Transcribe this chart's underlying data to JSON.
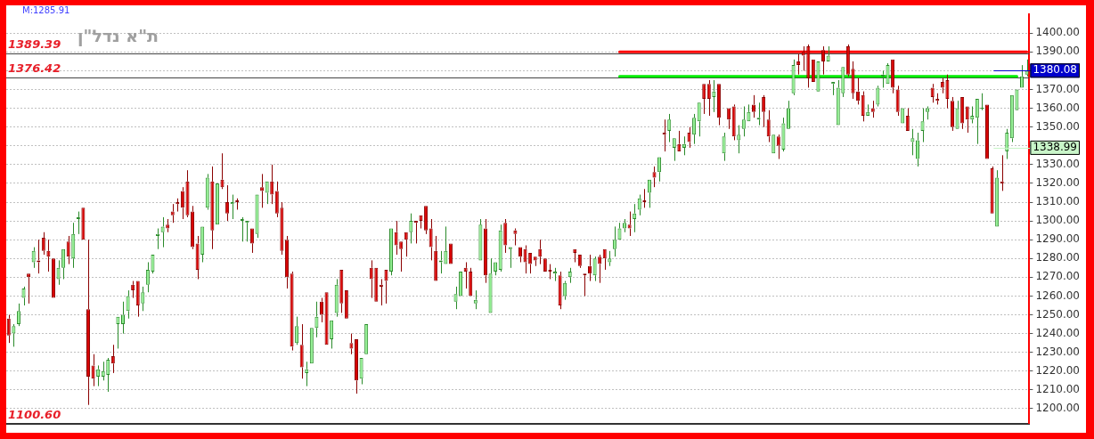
{
  "chart_data": {
    "type": "candlestick",
    "title": "ת\"א נדל\"ן",
    "categories": [
      null,
      null,
      null,
      null,
      null,
      null,
      null,
      null,
      null,
      null,
      null,
      null,
      null,
      null,
      null,
      null,
      null,
      null,
      null,
      null,
      null,
      null,
      null,
      null,
      null,
      null,
      null,
      null,
      null,
      null,
      null,
      null,
      null,
      null,
      null,
      null,
      null,
      null,
      null,
      null,
      null,
      null,
      null,
      null,
      null,
      null,
      null,
      null,
      null,
      null,
      null,
      null,
      null,
      null,
      null,
      null,
      null,
      null,
      null,
      null,
      null,
      null,
      null,
      null,
      null,
      null,
      null,
      null,
      null,
      null,
      null,
      null,
      null,
      null,
      null,
      null,
      null,
      null,
      null,
      null,
      null,
      null,
      null,
      null,
      null,
      null,
      null,
      null,
      null,
      null,
      null,
      null,
      null,
      null,
      null,
      null,
      null,
      null,
      null,
      null,
      null,
      null,
      null,
      null,
      null,
      null,
      null,
      null,
      null,
      null,
      null,
      null,
      null,
      null,
      null,
      null,
      null,
      null,
      null,
      null,
      null,
      null,
      null,
      null,
      null,
      null,
      null,
      null,
      null,
      null,
      null,
      null,
      null,
      null,
      null,
      null,
      null,
      null,
      null,
      null,
      null,
      null,
      null,
      null,
      null,
      null,
      null,
      null,
      null,
      null,
      null,
      null,
      null,
      null,
      null,
      null,
      null,
      null,
      null,
      null,
      null,
      null,
      null,
      null,
      null,
      null,
      null,
      null,
      null,
      null,
      null,
      null,
      null,
      null,
      null,
      null,
      null,
      null,
      null,
      null,
      null,
      null,
      null,
      null,
      null,
      null,
      null,
      null,
      null,
      null,
      null,
      null,
      null,
      null,
      null,
      null,
      null,
      null,
      null,
      null,
      null,
      null,
      null,
      null,
      null,
      null
    ],
    "ohlc": [
      [
        1248,
        1250,
        1235,
        1239
      ],
      [
        1240,
        1245,
        1233,
        1244
      ],
      [
        1245,
        1256,
        1244,
        1252
      ],
      [
        1259,
        1265,
        1255,
        1264
      ],
      [
        1272,
        1272,
        1256,
        1270
      ],
      [
        1278,
        1286,
        1275,
        1284
      ],
      [
        1279,
        1290,
        1272,
        1278
      ],
      [
        1291,
        1294,
        1282,
        1284
      ],
      [
        1284,
        1290,
        1273,
        1281
      ],
      [
        1280,
        1280,
        1259,
        1259
      ],
      [
        1269,
        1279,
        1266,
        1275
      ],
      [
        1275,
        1285,
        1269,
        1285
      ],
      [
        1289,
        1292,
        1277,
        1281
      ],
      [
        1280,
        1299,
        1275,
        1293
      ],
      [
        1301,
        1305,
        1293,
        1302
      ],
      [
        1307,
        1307,
        1290,
        1290
      ],
      [
        1253,
        1290,
        1202,
        1217
      ],
      [
        1223,
        1229,
        1212,
        1216
      ],
      [
        1217,
        1223,
        1212,
        1221
      ],
      [
        1217,
        1225,
        1215,
        1220
      ],
      [
        1218,
        1227,
        1209,
        1226
      ],
      [
        1228,
        1234,
        1219,
        1224
      ],
      [
        1245,
        1249,
        1232,
        1249
      ],
      [
        1245,
        1257,
        1240,
        1250
      ],
      [
        1252,
        1263,
        1248,
        1260
      ],
      [
        1266,
        1268,
        1259,
        1263
      ],
      [
        1268,
        1268,
        1249,
        1255
      ],
      [
        1256,
        1265,
        1252,
        1262
      ],
      [
        1266,
        1278,
        1262,
        1274
      ],
      [
        1273,
        1282,
        1272,
        1282
      ],
      [
        1292,
        1296,
        1285,
        1293
      ],
      [
        1294,
        1302,
        1286,
        1297
      ],
      [
        1298,
        1301,
        1294,
        1296
      ],
      [
        1305,
        1309,
        1299,
        1303
      ],
      [
        1310,
        1312,
        1305,
        1309
      ],
      [
        1316,
        1318,
        1301,
        1307
      ],
      [
        1321,
        1327,
        1302,
        1303
      ],
      [
        1305,
        1308,
        1285,
        1286
      ],
      [
        1288,
        1292,
        1269,
        1274
      ],
      [
        1282,
        1297,
        1278,
        1297
      ],
      [
        1307,
        1325,
        1306,
        1323
      ],
      [
        1321,
        1329,
        1285,
        1295
      ],
      [
        1298,
        1320,
        1298,
        1320
      ],
      [
        1322,
        1336,
        1317,
        1318
      ],
      [
        1310,
        1319,
        1300,
        1304
      ],
      [
        1309,
        1314,
        1301,
        1310
      ],
      [
        1311,
        1312,
        1306,
        1310
      ],
      [
        1300,
        1302,
        1289,
        1301
      ],
      [
        1299,
        1300,
        1289,
        1300
      ],
      [
        1296,
        1296,
        1283,
        1288
      ],
      [
        1293,
        1314,
        1291,
        1314
      ],
      [
        1318,
        1325,
        1307,
        1316
      ],
      [
        1315,
        1321,
        1309,
        1321
      ],
      [
        1321,
        1330,
        1309,
        1314
      ],
      [
        1316,
        1321,
        1302,
        1304
      ],
      [
        1307,
        1310,
        1282,
        1284
      ],
      [
        1290,
        1292,
        1264,
        1270
      ],
      [
        1272,
        1273,
        1231,
        1233
      ],
      [
        1235,
        1249,
        1234,
        1244
      ],
      [
        1234,
        1245,
        1216,
        1222
      ],
      [
        1219,
        1225,
        1212,
        1221
      ],
      [
        1224,
        1243,
        1224,
        1243
      ],
      [
        1243,
        1257,
        1238,
        1249
      ],
      [
        1257,
        1259,
        1246,
        1250
      ],
      [
        1262,
        1262,
        1234,
        1234
      ],
      [
        1237,
        1247,
        1232,
        1247
      ],
      [
        1251,
        1269,
        1249,
        1266
      ],
      [
        1274,
        1274,
        1251,
        1256
      ],
      [
        1263,
        1263,
        1248,
        1248
      ],
      [
        1235,
        1240,
        1229,
        1232
      ],
      [
        1237,
        1237,
        1208,
        1215
      ],
      [
        1216,
        1227,
        1213,
        1227
      ],
      [
        1229,
        1245,
        1229,
        1245
      ],
      [
        1275,
        1279,
        1259,
        1269
      ],
      [
        1275,
        1275,
        1257,
        1257
      ],
      [
        1266,
        1269,
        1255,
        1265
      ],
      [
        1274,
        1274,
        1256,
        1268
      ],
      [
        1273,
        1296,
        1271,
        1296
      ],
      [
        1294,
        1300,
        1282,
        1287
      ],
      [
        1289,
        1289,
        1273,
        1285
      ],
      [
        1294,
        1294,
        1281,
        1290
      ],
      [
        1294,
        1304,
        1288,
        1300
      ],
      [
        1300,
        1300,
        1288,
        1299
      ],
      [
        1303,
        1303,
        1296,
        1300
      ],
      [
        1308,
        1308,
        1293,
        1295
      ],
      [
        1296,
        1301,
        1279,
        1286
      ],
      [
        1284,
        1292,
        1268,
        1268
      ],
      [
        1278,
        1284,
        1272,
        1279
      ],
      [
        1277,
        1297,
        1277,
        1284
      ],
      [
        1288,
        1288,
        1277,
        1277
      ],
      [
        1257,
        1265,
        1253,
        1261
      ],
      [
        1260,
        1273,
        1260,
        1273
      ],
      [
        1275,
        1278,
        1264,
        1273
      ],
      [
        1273,
        1275,
        1260,
        1260
      ],
      [
        1256,
        1263,
        1253,
        1258
      ],
      [
        1279,
        1301,
        1279,
        1298
      ],
      [
        1296,
        1301,
        1267,
        1271
      ],
      [
        1251,
        1280,
        1251,
        1272
      ],
      [
        1273,
        1278,
        1271,
        1278
      ],
      [
        1274,
        1298,
        1273,
        1295
      ],
      [
        1299,
        1301,
        1283,
        1287
      ],
      [
        1285,
        1286,
        1275,
        1286
      ],
      [
        1295,
        1296,
        1287,
        1293
      ],
      [
        1286,
        1286,
        1278,
        1281
      ],
      [
        1285,
        1287,
        1272,
        1278
      ],
      [
        1283,
        1283,
        1272,
        1277
      ],
      [
        1281,
        1281,
        1276,
        1279
      ],
      [
        1285,
        1290,
        1277,
        1281
      ],
      [
        1280,
        1280,
        1273,
        1273
      ],
      [
        1274,
        1277,
        1269,
        1273
      ],
      [
        1272,
        1275,
        1268,
        1273
      ],
      [
        1271,
        1273,
        1253,
        1255
      ],
      [
        1260,
        1268,
        1258,
        1267
      ],
      [
        1270,
        1275,
        1267,
        1273
      ],
      [
        1285,
        1285,
        1278,
        1283
      ],
      [
        1282,
        1282,
        1275,
        1276
      ],
      [
        1272,
        1272,
        1260,
        1271
      ],
      [
        1276,
        1282,
        1268,
        1272
      ],
      [
        1271,
        1281,
        1268,
        1280
      ],
      [
        1281,
        1282,
        1267,
        1277
      ],
      [
        1285,
        1285,
        1274,
        1280
      ],
      [
        1278,
        1284,
        1276,
        1280
      ],
      [
        1285,
        1297,
        1281,
        1290
      ],
      [
        1290,
        1299,
        1290,
        1296
      ],
      [
        1296,
        1301,
        1294,
        1299
      ],
      [
        1298,
        1305,
        1292,
        1296
      ],
      [
        1301,
        1309,
        1294,
        1304
      ],
      [
        1306,
        1314,
        1303,
        1312
      ],
      [
        1311,
        1317,
        1307,
        1310
      ],
      [
        1315,
        1322,
        1307,
        1322
      ],
      [
        1326,
        1329,
        1318,
        1323
      ],
      [
        1326,
        1334,
        1321,
        1334
      ],
      [
        1347,
        1354,
        1337,
        1346
      ],
      [
        1348,
        1357,
        1342,
        1354
      ],
      [
        1339,
        1344,
        1332,
        1344
      ],
      [
        1341,
        1348,
        1337,
        1337
      ],
      [
        1339,
        1345,
        1335,
        1341
      ],
      [
        1347,
        1350,
        1339,
        1342
      ],
      [
        1346,
        1357,
        1341,
        1355
      ],
      [
        1353,
        1363,
        1345,
        1363
      ],
      [
        1373,
        1373,
        1357,
        1365
      ],
      [
        1373,
        1375,
        1356,
        1365
      ],
      [
        1366,
        1375,
        1358,
        1369
      ],
      [
        1373,
        1373,
        1351,
        1355
      ],
      [
        1336,
        1347,
        1332,
        1345
      ],
      [
        1360,
        1360,
        1349,
        1354
      ],
      [
        1361,
        1362,
        1343,
        1345
      ],
      [
        1343,
        1351,
        1336,
        1346
      ],
      [
        1349,
        1361,
        1345,
        1354
      ],
      [
        1353,
        1362,
        1353,
        1358
      ],
      [
        1362,
        1367,
        1355,
        1358
      ],
      [
        1354,
        1363,
        1351,
        1355
      ],
      [
        1366,
        1367,
        1350,
        1358
      ],
      [
        1354,
        1359,
        1342,
        1345
      ],
      [
        1336,
        1346,
        1336,
        1346
      ],
      [
        1345,
        1346,
        1333,
        1340
      ],
      [
        1338,
        1355,
        1337,
        1352
      ],
      [
        1349,
        1364,
        1349,
        1360
      ],
      [
        1368,
        1386,
        1367,
        1383
      ],
      [
        1385,
        1389,
        1378,
        1383
      ],
      [
        1390,
        1393,
        1380,
        1388
      ],
      [
        1393,
        1394,
        1371,
        1376
      ],
      [
        1386,
        1386,
        1374,
        1374
      ],
      [
        1369,
        1385,
        1369,
        1385
      ],
      [
        1391,
        1393,
        1378,
        1385
      ],
      [
        1385,
        1393,
        1385,
        1388
      ],
      [
        1373,
        1374,
        1367,
        1374
      ],
      [
        1351,
        1375,
        1351,
        1371
      ],
      [
        1368,
        1382,
        1366,
        1382
      ],
      [
        1393,
        1394,
        1377,
        1378
      ],
      [
        1381,
        1385,
        1365,
        1368
      ],
      [
        1369,
        1376,
        1362,
        1364
      ],
      [
        1367,
        1369,
        1353,
        1356
      ],
      [
        1356,
        1362,
        1356,
        1358
      ],
      [
        1360,
        1364,
        1355,
        1358
      ],
      [
        1362,
        1372,
        1361,
        1371
      ],
      [
        1377,
        1380,
        1371,
        1378
      ],
      [
        1373,
        1384,
        1373,
        1383
      ],
      [
        1386,
        1386,
        1368,
        1371
      ],
      [
        1370,
        1372,
        1356,
        1358
      ],
      [
        1352,
        1360,
        1352,
        1360
      ],
      [
        1356,
        1360,
        1348,
        1348
      ],
      [
        1342,
        1349,
        1335,
        1344
      ],
      [
        1333,
        1347,
        1329,
        1343
      ],
      [
        1348,
        1360,
        1342,
        1353
      ],
      [
        1358,
        1361,
        1354,
        1360
      ],
      [
        1371,
        1373,
        1363,
        1366
      ],
      [
        1365,
        1368,
        1362,
        1364
      ],
      [
        1374,
        1376,
        1368,
        1371
      ],
      [
        1375,
        1378,
        1360,
        1365
      ],
      [
        1364,
        1366,
        1348,
        1350
      ],
      [
        1349,
        1364,
        1349,
        1360
      ],
      [
        1366,
        1366,
        1349,
        1352
      ],
      [
        1361,
        1361,
        1347,
        1354
      ],
      [
        1354,
        1361,
        1352,
        1356
      ],
      [
        1355,
        1365,
        1341,
        1365
      ],
      [
        1360,
        1368,
        1359,
        1360
      ],
      [
        1362,
        1362,
        1333,
        1333
      ],
      [
        1328,
        1329,
        1304,
        1304
      ],
      [
        1297,
        1327,
        1297,
        1323
      ],
      [
        1321,
        1335,
        1316,
        1320
      ],
      [
        1337,
        1349,
        1333,
        1347
      ],
      [
        1344,
        1367,
        1342,
        1367
      ],
      [
        1359,
        1370,
        1359,
        1370
      ],
      [
        1371,
        1383,
        1371,
        1377
      ],
      [
        1378,
        1386,
        1377,
        1380
      ]
    ],
    "series": [
      {
        "type": "line",
        "color": "#ff0000",
        "values": [
          null,
          null,
          null,
          null,
          null,
          null,
          null,
          null,
          null,
          null,
          null,
          null,
          null,
          null,
          null,
          null,
          null,
          null,
          null,
          null,
          null,
          null,
          null,
          null,
          null,
          null,
          null,
          null,
          null,
          null,
          null,
          null,
          null,
          null,
          null,
          null,
          null,
          null,
          null,
          null,
          null,
          null,
          null,
          null,
          null,
          null,
          null,
          null,
          null,
          null,
          null,
          null,
          null,
          null,
          null,
          null,
          null,
          null,
          null,
          null,
          null,
          null,
          null,
          null,
          null,
          null,
          null,
          null,
          null,
          null,
          null,
          null,
          null,
          null,
          null,
          null,
          null,
          null,
          null,
          null,
          null,
          null,
          null,
          null,
          null,
          null,
          null,
          null,
          null,
          null,
          null,
          null,
          null,
          null,
          null,
          null,
          null,
          null,
          null,
          null,
          null,
          null,
          null,
          null,
          null,
          null,
          null,
          null,
          null,
          null,
          null,
          null,
          null,
          null,
          null,
          null,
          null,
          null,
          null,
          null,
          null,
          null,
          null,
          1390,
          1390,
          1390,
          1390,
          1390,
          1390,
          1390,
          1390,
          1390,
          1390,
          1390,
          1390,
          1390,
          1390,
          1390,
          1390,
          1390,
          1390,
          1390,
          1390,
          1390,
          1390,
          1390,
          1390,
          1390,
          1390,
          1390,
          1390,
          1390,
          1390,
          1390,
          1390,
          1390,
          1390,
          1390,
          1390,
          1390,
          1390,
          1390,
          1390,
          1390,
          1390,
          1390,
          1390,
          1390,
          1390,
          1390,
          1390,
          1390,
          1390,
          1390,
          1390,
          1390,
          1390,
          1390,
          1390,
          1390,
          1390,
          1390,
          1390,
          1390,
          1390,
          1390,
          1390,
          1390,
          1390,
          1390,
          1390,
          1390,
          1390,
          1390,
          1390,
          1390,
          1390,
          1390,
          1390,
          1390,
          1390,
          1390,
          1390,
          1390,
          1390,
          1390
        ]
      },
      {
        "type": "line",
        "color": "#00ee00",
        "values": [
          null,
          null,
          null,
          null,
          null,
          null,
          null,
          null,
          null,
          null,
          null,
          null,
          null,
          null,
          null,
          null,
          null,
          null,
          null,
          null,
          null,
          null,
          null,
          null,
          null,
          null,
          null,
          null,
          null,
          null,
          null,
          null,
          null,
          null,
          null,
          null,
          null,
          null,
          null,
          null,
          null,
          null,
          null,
          null,
          null,
          null,
          null,
          null,
          null,
          null,
          null,
          null,
          null,
          null,
          null,
          null,
          null,
          null,
          null,
          null,
          null,
          null,
          null,
          null,
          null,
          null,
          null,
          null,
          null,
          null,
          null,
          null,
          null,
          null,
          null,
          null,
          null,
          null,
          null,
          null,
          null,
          null,
          null,
          null,
          null,
          null,
          null,
          null,
          null,
          null,
          null,
          null,
          null,
          null,
          null,
          null,
          null,
          null,
          null,
          null,
          null,
          null,
          null,
          null,
          null,
          null,
          null,
          null,
          null,
          null,
          null,
          null,
          null,
          null,
          null,
          null,
          null,
          null,
          null,
          null,
          null,
          null,
          null,
          1377,
          1377,
          1377,
          1377,
          1377,
          1377,
          1377,
          1377,
          1377,
          1377,
          1377,
          1377,
          1377,
          1377,
          1377,
          1377,
          1377,
          1377,
          1377,
          1377,
          1377,
          1377,
          1377,
          1377,
          1377,
          1377,
          1377,
          1377,
          1377,
          1377,
          1377,
          1377,
          1377,
          1377,
          1377,
          1377,
          1377,
          1377,
          1377,
          1377,
          1377,
          1377,
          1377,
          1377,
          1377,
          1377,
          1377,
          1377,
          1377,
          1377,
          1377,
          1377,
          1377,
          1377,
          1377,
          1377,
          1377,
          1377,
          1377,
          1377,
          1377,
          1377,
          1377,
          1377,
          1377,
          1377,
          1377,
          1377,
          1377,
          1377,
          1377,
          1377,
          1377,
          1377,
          1377,
          1377,
          1377,
          1377,
          1377,
          1377,
          1377,
          null,
          null
        ]
      }
    ],
    "ylim": [
      1192,
      1410
    ],
    "yticks": [
      {
        "value": 1200,
        "label": "1200.00"
      },
      {
        "value": 1210,
        "label": "1210.00"
      },
      {
        "value": 1220,
        "label": "1220.00"
      },
      {
        "value": 1230,
        "label": "1230.00"
      },
      {
        "value": 1240,
        "label": "1240.00"
      },
      {
        "value": 1250,
        "label": "1250.00"
      },
      {
        "value": 1260,
        "label": "1260.00"
      },
      {
        "value": 1270,
        "label": "1270.00"
      },
      {
        "value": 1280,
        "label": "1280.00"
      },
      {
        "value": 1290,
        "label": "1290.00"
      },
      {
        "value": 1300,
        "label": "1300.00"
      },
      {
        "value": 1310,
        "label": "1310.00"
      },
      {
        "value": 1320,
        "label": "1320.00"
      },
      {
        "value": 1330,
        "label": "1330.00"
      },
      {
        "value": 1340,
        "label": null
      },
      {
        "value": 1350,
        "label": "1350.00"
      },
      {
        "value": 1360,
        "label": "1360.00"
      },
      {
        "value": 1370,
        "label": "1370.00"
      },
      {
        "value": 1380,
        "label": null
      },
      {
        "value": 1390,
        "label": "1390.00"
      },
      {
        "value": 1400,
        "label": "1400.00"
      }
    ],
    "ref_lines": [
      {
        "axis": "y",
        "value": 1389.39,
        "label": "1389.39",
        "color": "#444444"
      },
      {
        "axis": "y",
        "value": 1376.42,
        "label": "1376.42",
        "color": "#444444"
      },
      {
        "axis": "y",
        "value": 1380.08,
        "label": "1380.08",
        "color": "#0000cc"
      },
      {
        "axis": "y",
        "value": 1338.99,
        "label": "1338.99",
        "color": "#c8f5c8"
      }
    ],
    "annotations": [
      "M:1285.91",
      "1100.60"
    ],
    "grid": "y",
    "tick_labels": "y"
  }
}
